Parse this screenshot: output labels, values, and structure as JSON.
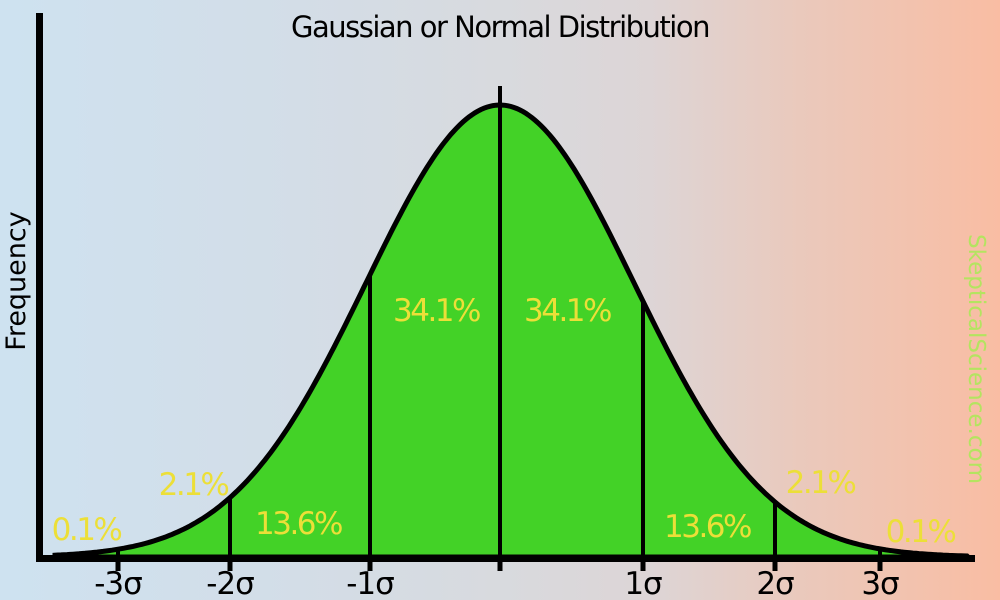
{
  "chart_data": {
    "type": "area",
    "title": "Gaussian or Normal Distribution",
    "ylabel": "Frequency",
    "xlabel": "",
    "grid": false,
    "legend": null,
    "curve": {
      "distribution": "gaussian-bell-curve",
      "mean": "0",
      "x_axis_units": "standard deviations (sigma)"
    },
    "x_tick_labels": [
      "-3σ",
      "-2σ",
      "-1σ",
      "1σ",
      "2σ",
      "3σ"
    ],
    "x_tick_sigma_values": [
      -3,
      -2,
      -1,
      1,
      2,
      3
    ],
    "regions": [
      {
        "range": "below -3σ",
        "label": "0.1%",
        "value_pct": 0.1
      },
      {
        "range": "-3σ to -2σ",
        "label": "2.1%",
        "value_pct": 2.1
      },
      {
        "range": "-2σ to -1σ",
        "label": "13.6%",
        "value_pct": 13.6
      },
      {
        "range": "-1σ to 0",
        "label": "34.1%",
        "value_pct": 34.1
      },
      {
        "range": "0 to 1σ",
        "label": "34.1%",
        "value_pct": 34.1
      },
      {
        "range": "1σ to 2σ",
        "label": "13.6%",
        "value_pct": 13.6
      },
      {
        "range": "2σ to 3σ",
        "label": "2.1%",
        "value_pct": 2.1
      },
      {
        "range": "above 3σ",
        "label": "0.1%",
        "value_pct": 0.1
      }
    ],
    "watermark": "SkepticalScience.com",
    "colors": {
      "curve_fill": "#43d227",
      "curve_stroke": "#000000",
      "axis": "#000000",
      "percent_label": "#ecdf38",
      "watermark": "#b4e460",
      "background_left": "#cee2f0",
      "background_right": "#f9bda3",
      "title_text": "#000000"
    }
  }
}
